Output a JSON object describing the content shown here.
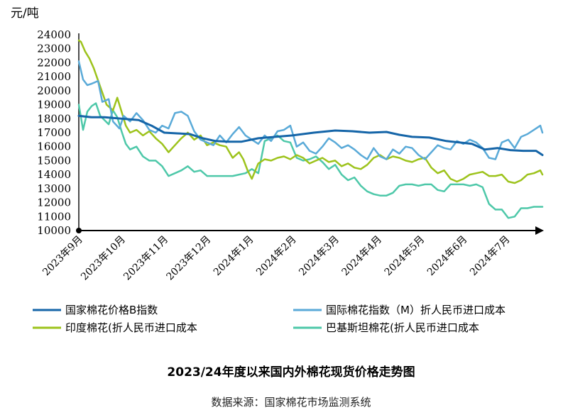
{
  "chart_data": {
    "type": "line",
    "title": "2023/24年度以来国内外棉花现货价格走势图",
    "source": "数据来源：国家棉花市场监测系统",
    "ylabel": "元/吨",
    "ylim": [
      10000,
      24000
    ],
    "yticks": [
      "10000",
      "11000",
      "12000",
      "13000",
      "14000",
      "15000",
      "16000",
      "17000",
      "18000",
      "19000",
      "20000",
      "21000",
      "22000",
      "23000",
      "24000"
    ],
    "categories": [
      "2023年9月",
      "2023年10月",
      "2023年11月",
      "2023年12月",
      "2024年1月",
      "2024年2月",
      "2024年3月",
      "2024年4月",
      "2024年5月",
      "2024年6月",
      "2024年7月"
    ],
    "x_range": [
      0,
      10.85
    ],
    "grid": false,
    "legend_position": "bottom",
    "series": [
      {
        "name": "国家棉花价格B指数",
        "color": "#1565a8",
        "x": [
          0,
          0.3,
          0.6,
          1,
          1.4,
          1.7,
          2,
          2.3,
          2.6,
          2.9,
          3.2,
          3.5,
          3.8,
          4.2,
          4.6,
          5,
          5.5,
          6,
          6.4,
          6.8,
          7.2,
          7.5,
          7.8,
          8.2,
          8.6,
          8.9,
          9.2,
          9.5,
          9.8,
          10.1,
          10.4,
          10.7,
          10.85
        ],
        "values": [
          18200,
          18100,
          18100,
          18000,
          17900,
          17500,
          17000,
          16950,
          16900,
          16600,
          16400,
          16350,
          16350,
          16600,
          16700,
          16800,
          17000,
          17150,
          17100,
          17000,
          17050,
          16850,
          16700,
          16650,
          16400,
          16300,
          16200,
          15800,
          15900,
          15750,
          15700,
          15700,
          15400
        ]
      },
      {
        "name": "国际棉花指数（M）折人民币进口成本",
        "color": "#5aaad8",
        "x": [
          0,
          0.1,
          0.2,
          0.3,
          0.45,
          0.55,
          0.7,
          0.8,
          0.95,
          1.05,
          1.2,
          1.35,
          1.5,
          1.65,
          1.8,
          1.95,
          2.1,
          2.25,
          2.4,
          2.55,
          2.7,
          2.85,
          3,
          3.15,
          3.3,
          3.45,
          3.6,
          3.75,
          3.9,
          4.05,
          4.2,
          4.35,
          4.5,
          4.65,
          4.8,
          4.95,
          5.1,
          5.25,
          5.4,
          5.55,
          5.7,
          5.85,
          6,
          6.15,
          6.3,
          6.45,
          6.6,
          6.75,
          6.9,
          7.05,
          7.2,
          7.35,
          7.5,
          7.65,
          7.8,
          7.95,
          8.1,
          8.25,
          8.4,
          8.55,
          8.7,
          8.85,
          9,
          9.15,
          9.3,
          9.45,
          9.6,
          9.75,
          9.9,
          10.05,
          10.2,
          10.35,
          10.5,
          10.65,
          10.8,
          10.85
        ],
        "values": [
          22100,
          20800,
          20400,
          20500,
          20700,
          19200,
          19400,
          17800,
          17300,
          18200,
          17800,
          18400,
          17900,
          17200,
          17000,
          17500,
          17300,
          18400,
          18500,
          18200,
          17100,
          16500,
          16300,
          16100,
          16800,
          16300,
          16900,
          17400,
          16800,
          16500,
          16200,
          16800,
          16400,
          17100,
          17200,
          17500,
          16000,
          16300,
          15700,
          15500,
          16000,
          16600,
          16300,
          15900,
          16100,
          15800,
          15400,
          15100,
          15900,
          15300,
          15100,
          15800,
          15500,
          16000,
          15900,
          15400,
          15100,
          15600,
          16100,
          15900,
          15800,
          16400,
          16200,
          16500,
          16300,
          15900,
          15200,
          15100,
          16300,
          16500,
          15900,
          16700,
          16900,
          17200,
          17500,
          17000
        ]
      },
      {
        "name": "印度棉花(折人民币进口成本",
        "color": "#9dc31c",
        "x": [
          0,
          0.05,
          0.15,
          0.25,
          0.35,
          0.5,
          0.65,
          0.8,
          0.9,
          1,
          1.1,
          1.2,
          1.35,
          1.5,
          1.65,
          1.8,
          1.95,
          2.1,
          2.25,
          2.4,
          2.55,
          2.7,
          2.85,
          3,
          3.15,
          3.3,
          3.45,
          3.6,
          3.75,
          3.85,
          3.95,
          4.05,
          4.2,
          4.35,
          4.5,
          4.65,
          4.8,
          4.95,
          5.1,
          5.25,
          5.4,
          5.55,
          5.7,
          5.85,
          6,
          6.15,
          6.3,
          6.45,
          6.6,
          6.75,
          6.9,
          7.05,
          7.2,
          7.35,
          7.5,
          7.65,
          7.8,
          7.95,
          8.1,
          8.25,
          8.4,
          8.55,
          8.7,
          8.85,
          9,
          9.15,
          9.3,
          9.45,
          9.6,
          9.75,
          9.9,
          10.05,
          10.2,
          10.35,
          10.5,
          10.65,
          10.8,
          10.85
        ],
        "values": [
          23600,
          23500,
          22800,
          22300,
          21600,
          20300,
          19000,
          18600,
          19500,
          18500,
          17500,
          17000,
          17200,
          16800,
          17100,
          16600,
          16200,
          15600,
          16100,
          16600,
          17000,
          16500,
          16800,
          16100,
          16300,
          16100,
          16000,
          15200,
          15600,
          15100,
          14300,
          13700,
          14800,
          15100,
          15000,
          15200,
          15300,
          15100,
          15400,
          15200,
          14800,
          15000,
          15200,
          14900,
          15000,
          14600,
          14800,
          14500,
          14400,
          14700,
          15200,
          15400,
          15100,
          15300,
          15200,
          15000,
          14900,
          15100,
          15200,
          14500,
          14100,
          14300,
          13700,
          13500,
          13700,
          14000,
          14100,
          14200,
          13900,
          13900,
          14000,
          13500,
          13400,
          13600,
          14000,
          14100,
          14300,
          14000
        ]
      },
      {
        "name": "巴基斯坦棉花(折人民币进口成本",
        "color": "#4ec8a9",
        "x": [
          0,
          0.1,
          0.2,
          0.3,
          0.4,
          0.5,
          0.6,
          0.7,
          0.8,
          0.9,
          1,
          1.1,
          1.2,
          1.35,
          1.5,
          1.65,
          1.8,
          1.95,
          2.1,
          2.25,
          2.4,
          2.55,
          2.7,
          2.85,
          3,
          3.15,
          3.3,
          3.45,
          3.6,
          3.75,
          3.9,
          4.05,
          4.2,
          4.35,
          4.5,
          4.65,
          4.8,
          4.95,
          5.1,
          5.25,
          5.4,
          5.55,
          5.7,
          5.85,
          6,
          6.15,
          6.3,
          6.45,
          6.6,
          6.75,
          6.9,
          7.05,
          7.2,
          7.35,
          7.5,
          7.65,
          7.8,
          7.95,
          8.1,
          8.25,
          8.4,
          8.55,
          8.7,
          8.85,
          9,
          9.15,
          9.3,
          9.45,
          9.6,
          9.75,
          9.9,
          10.05,
          10.2,
          10.35,
          10.5,
          10.65,
          10.8,
          10.85
        ],
        "values": [
          19000,
          17200,
          18500,
          18900,
          19100,
          18200,
          17900,
          17600,
          18600,
          18100,
          17100,
          16200,
          15800,
          16000,
          15300,
          15000,
          15000,
          14600,
          13900,
          14100,
          14300,
          14600,
          14200,
          14300,
          13900,
          13900,
          13900,
          13900,
          13900,
          14000,
          14100,
          14400,
          14100,
          16400,
          16600,
          16800,
          16400,
          16300,
          15200,
          15000,
          15100,
          15300,
          14900,
          14400,
          14700,
          14000,
          13600,
          13800,
          13200,
          12800,
          12600,
          12500,
          12500,
          12700,
          13200,
          13300,
          13300,
          13200,
          13300,
          13300,
          12900,
          12800,
          13300,
          13300,
          13300,
          13200,
          13300,
          13100,
          11900,
          11500,
          11500,
          10900,
          11000,
          11600,
          11600,
          11700,
          11700,
          11700
        ]
      }
    ]
  }
}
